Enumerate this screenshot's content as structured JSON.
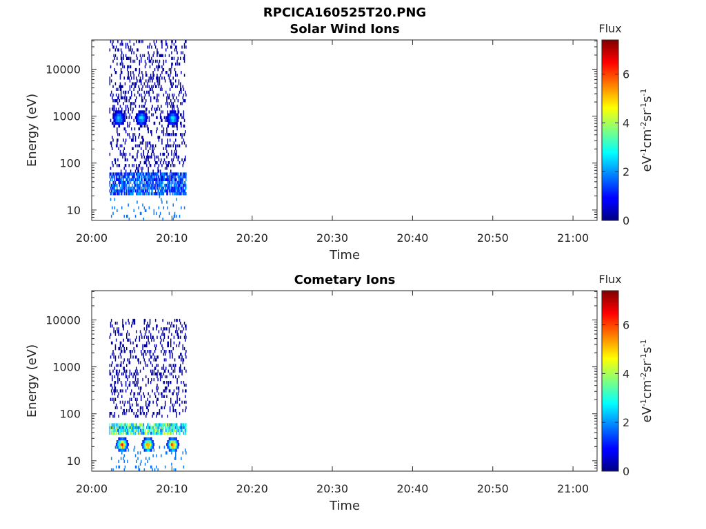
{
  "figure_title": "RPCICA160525T20.PNG",
  "colors": {
    "axis": "#262626",
    "background": "#ffffff",
    "colormap": "jet"
  },
  "chart_data": [
    {
      "type": "heatmap",
      "title": "Solar Wind Ions",
      "xlabel": "Time",
      "ylabel": "Energy (eV)",
      "x_ticks": [
        "20:00",
        "20:10",
        "20:20",
        "20:30",
        "20:40",
        "20:50",
        "21:00"
      ],
      "x_range_minutes": [
        0,
        63
      ],
      "y_scale": "log",
      "y_ticks": [
        "10",
        "100",
        "1000",
        "10000"
      ],
      "y_range": [
        6,
        42000
      ],
      "data_time_range_minutes": [
        2.2,
        11.8
      ],
      "colorbar": {
        "title": "Flux",
        "label": "eV-1cm-2sr-1s-1",
        "ticks": [
          "0",
          "2",
          "4",
          "6"
        ],
        "range": [
          0,
          7.4
        ]
      },
      "features": [
        {
          "description": "sparse low flux counts",
          "energy_range": [
            40,
            40000
          ],
          "flux": 0.3
        },
        {
          "description": "bursts near 1 keV",
          "energy": 900,
          "times_minutes": [
            3.4,
            6.2,
            10.1
          ],
          "flux": 2.6
        },
        {
          "description": "dense band",
          "energy_range": [
            20,
            60
          ],
          "flux": 1.5
        }
      ]
    },
    {
      "type": "heatmap",
      "title": "Cometary Ions",
      "xlabel": "Time",
      "ylabel": "Energy (eV)",
      "x_ticks": [
        "20:00",
        "20:10",
        "20:20",
        "20:30",
        "20:40",
        "20:50",
        "21:00"
      ],
      "x_range_minutes": [
        0,
        63
      ],
      "y_scale": "log",
      "y_ticks": [
        "10",
        "100",
        "1000",
        "10000"
      ],
      "y_range": [
        6,
        42000
      ],
      "data_time_range_minutes": [
        2.2,
        11.8
      ],
      "colorbar": {
        "title": "Flux",
        "label": "eV-1cm-2sr-1s-1",
        "ticks": [
          "0",
          "2",
          "4",
          "6"
        ],
        "range": [
          0,
          7.4
        ]
      },
      "features": [
        {
          "description": "sparse low flux counts",
          "energy_range": [
            80,
            10000
          ],
          "flux": 0.3
        },
        {
          "description": "band near 40 eV",
          "energy_range": [
            35,
            60
          ],
          "flux": 3.0
        },
        {
          "description": "peaks near 20 eV",
          "energy": 22,
          "times_minutes": [
            3.8,
            7.0,
            10.1
          ],
          "flux": 5.8
        }
      ]
    }
  ]
}
